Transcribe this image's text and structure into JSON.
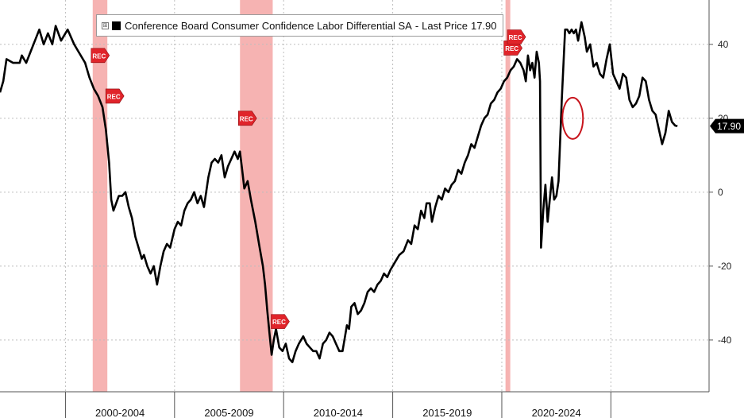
{
  "legend": {
    "series_name": "Conference Board Consumer Confidence Labor Differential SA",
    "separator": "-",
    "price_label": "Last Price",
    "last_price": "17.90",
    "toggle_symbol": "⊞"
  },
  "colors": {
    "line": "#000000",
    "recession_band": "#f4a6a4",
    "recession_badge": "#e0242a",
    "highlight_circle": "#c8141c",
    "grid": "#bdbdbd",
    "price_tag": "#000000"
  },
  "chart_data": {
    "type": "line",
    "title": "Conference Board Consumer Confidence Labor Differential SA",
    "xlabel": "",
    "ylabel": "",
    "xlim": [
      1997.0,
      2029.5
    ],
    "ylim": [
      -54,
      52
    ],
    "y_ticks": [
      40,
      20,
      0,
      -20,
      -40
    ],
    "x_period_labels": [
      {
        "label": "2000-2004",
        "start": 2000,
        "end": 2005
      },
      {
        "label": "2005-2009",
        "start": 2005,
        "end": 2010
      },
      {
        "label": "2010-2014",
        "start": 2010,
        "end": 2015
      },
      {
        "label": "2015-2019",
        "start": 2015,
        "end": 2020
      },
      {
        "label": "2020-2024",
        "start": 2020,
        "end": 2025
      }
    ],
    "x_boundaries": [
      2000,
      2005,
      2010,
      2015,
      2020,
      2025
    ],
    "recessions": [
      {
        "start": 2001.25,
        "end": 2001.92,
        "label": "REC"
      },
      {
        "start": 2008.0,
        "end": 2009.5,
        "label": "REC"
      },
      {
        "start": 2020.17,
        "end": 2020.33,
        "label": "REC"
      }
    ],
    "last_value_tag": "17.90",
    "highlight": {
      "x": 2023.25,
      "y": 20
    },
    "series": [
      {
        "name": "Labor Differential",
        "points": [
          [
            1997.0,
            27
          ],
          [
            1997.15,
            30
          ],
          [
            1997.3,
            36
          ],
          [
            1997.6,
            35
          ],
          [
            1997.9,
            35
          ],
          [
            1998.0,
            37
          ],
          [
            1998.2,
            35
          ],
          [
            1998.4,
            38
          ],
          [
            1998.6,
            41
          ],
          [
            1998.8,
            44
          ],
          [
            1999.0,
            40
          ],
          [
            1999.2,
            43
          ],
          [
            1999.4,
            40
          ],
          [
            1999.55,
            45
          ],
          [
            1999.8,
            41
          ],
          [
            2000.1,
            44
          ],
          [
            2000.4,
            40
          ],
          [
            2000.6,
            38
          ],
          [
            2000.9,
            35
          ],
          [
            2001.1,
            31
          ],
          [
            2001.3,
            28
          ],
          [
            2001.5,
            26
          ],
          [
            2001.7,
            23
          ],
          [
            2001.85,
            17
          ],
          [
            2002.0,
            8
          ],
          [
            2002.1,
            -2
          ],
          [
            2002.2,
            -5
          ],
          [
            2002.45,
            -1
          ],
          [
            2002.6,
            -1
          ],
          [
            2002.75,
            0
          ],
          [
            2002.9,
            -4
          ],
          [
            2003.05,
            -7
          ],
          [
            2003.2,
            -12
          ],
          [
            2003.35,
            -15
          ],
          [
            2003.5,
            -18
          ],
          [
            2003.6,
            -17
          ],
          [
            2003.75,
            -20
          ],
          [
            2003.9,
            -22
          ],
          [
            2004.05,
            -20
          ],
          [
            2004.2,
            -25
          ],
          [
            2004.35,
            -20
          ],
          [
            2004.5,
            -16
          ],
          [
            2004.65,
            -14
          ],
          [
            2004.8,
            -15
          ],
          [
            2005.0,
            -10
          ],
          [
            2005.15,
            -8
          ],
          [
            2005.3,
            -9
          ],
          [
            2005.45,
            -5
          ],
          [
            2005.6,
            -3
          ],
          [
            2005.75,
            -2
          ],
          [
            2005.9,
            0
          ],
          [
            2006.05,
            -3
          ],
          [
            2006.2,
            -1
          ],
          [
            2006.35,
            -4
          ],
          [
            2006.55,
            4
          ],
          [
            2006.7,
            8
          ],
          [
            2006.85,
            9
          ],
          [
            2007.0,
            8
          ],
          [
            2007.15,
            10
          ],
          [
            2007.3,
            4
          ],
          [
            2007.45,
            7
          ],
          [
            2007.6,
            9
          ],
          [
            2007.75,
            11
          ],
          [
            2007.9,
            9
          ],
          [
            2008.0,
            11
          ],
          [
            2008.1,
            6
          ],
          [
            2008.2,
            1
          ],
          [
            2008.35,
            3
          ],
          [
            2008.5,
            -2
          ],
          [
            2008.7,
            -8
          ],
          [
            2008.9,
            -15
          ],
          [
            2009.05,
            -20
          ],
          [
            2009.15,
            -25
          ],
          [
            2009.25,
            -32
          ],
          [
            2009.35,
            -38
          ],
          [
            2009.45,
            -44
          ],
          [
            2009.55,
            -40
          ],
          [
            2009.65,
            -37
          ],
          [
            2009.8,
            -42
          ],
          [
            2009.95,
            -43
          ],
          [
            2010.1,
            -41
          ],
          [
            2010.25,
            -45
          ],
          [
            2010.4,
            -46
          ],
          [
            2010.55,
            -43
          ],
          [
            2010.7,
            -41
          ],
          [
            2010.9,
            -39
          ],
          [
            2011.05,
            -41
          ],
          [
            2011.2,
            -42
          ],
          [
            2011.35,
            -43
          ],
          [
            2011.5,
            -43
          ],
          [
            2011.65,
            -45
          ],
          [
            2011.8,
            -41
          ],
          [
            2011.95,
            -40
          ],
          [
            2012.1,
            -38
          ],
          [
            2012.25,
            -39
          ],
          [
            2012.4,
            -41
          ],
          [
            2012.55,
            -43
          ],
          [
            2012.7,
            -43
          ],
          [
            2012.9,
            -36
          ],
          [
            2013.0,
            -37
          ],
          [
            2013.1,
            -31
          ],
          [
            2013.25,
            -30
          ],
          [
            2013.4,
            -33
          ],
          [
            2013.55,
            -32
          ],
          [
            2013.7,
            -30
          ],
          [
            2013.85,
            -27
          ],
          [
            2014.0,
            -26
          ],
          [
            2014.15,
            -27
          ],
          [
            2014.3,
            -25
          ],
          [
            2014.45,
            -24
          ],
          [
            2014.6,
            -22
          ],
          [
            2014.75,
            -23
          ],
          [
            2014.9,
            -21
          ],
          [
            2015.1,
            -19
          ],
          [
            2015.3,
            -17
          ],
          [
            2015.5,
            -16
          ],
          [
            2015.7,
            -13
          ],
          [
            2015.85,
            -14
          ],
          [
            2016.0,
            -9
          ],
          [
            2016.15,
            -10
          ],
          [
            2016.3,
            -5
          ],
          [
            2016.45,
            -7
          ],
          [
            2016.55,
            -3
          ],
          [
            2016.7,
            -3
          ],
          [
            2016.8,
            -8
          ],
          [
            2016.95,
            -4
          ],
          [
            2017.1,
            -1
          ],
          [
            2017.25,
            -2
          ],
          [
            2017.4,
            1
          ],
          [
            2017.55,
            0
          ],
          [
            2017.7,
            2
          ],
          [
            2017.85,
            3
          ],
          [
            2018.0,
            6
          ],
          [
            2018.15,
            5
          ],
          [
            2018.3,
            8
          ],
          [
            2018.45,
            10
          ],
          [
            2018.6,
            13
          ],
          [
            2018.75,
            12
          ],
          [
            2018.9,
            15
          ],
          [
            2019.05,
            18
          ],
          [
            2019.2,
            20
          ],
          [
            2019.35,
            21
          ],
          [
            2019.5,
            24
          ],
          [
            2019.65,
            25
          ],
          [
            2019.8,
            27
          ],
          [
            2019.95,
            28
          ],
          [
            2020.1,
            30
          ],
          [
            2020.25,
            31
          ],
          [
            2020.4,
            33
          ],
          [
            2020.55,
            34
          ],
          [
            2020.7,
            36
          ],
          [
            2020.85,
            35
          ],
          [
            2021.0,
            33
          ],
          [
            2021.1,
            30
          ],
          [
            2021.2,
            37
          ],
          [
            2021.3,
            33
          ],
          [
            2021.4,
            35
          ],
          [
            2021.5,
            31
          ],
          [
            2021.6,
            38
          ],
          [
            2021.7,
            35
          ],
          [
            2021.75,
            30
          ],
          [
            2021.8,
            -15
          ],
          [
            2021.9,
            -5
          ],
          [
            2022.0,
            2
          ],
          [
            2022.1,
            -8
          ],
          [
            2022.2,
            -2
          ],
          [
            2022.3,
            4
          ],
          [
            2022.4,
            -2
          ],
          [
            2022.5,
            -1
          ],
          [
            2022.6,
            3
          ],
          [
            2022.75,
            25
          ],
          [
            2022.9,
            44
          ],
          [
            2023.0,
            44
          ],
          [
            2023.1,
            43
          ],
          [
            2023.2,
            44
          ],
          [
            2023.3,
            43
          ],
          [
            2023.4,
            44
          ],
          [
            2023.5,
            41
          ],
          [
            2023.65,
            46
          ],
          [
            2023.8,
            42
          ],
          [
            2023.9,
            38
          ],
          [
            2024.05,
            40
          ],
          [
            2024.2,
            34
          ],
          [
            2024.35,
            35
          ],
          [
            2024.5,
            32
          ],
          [
            2024.65,
            31
          ],
          [
            2024.8,
            36
          ],
          [
            2024.95,
            40
          ],
          [
            2025.1,
            32
          ],
          [
            2025.25,
            30
          ],
          [
            2025.4,
            28
          ],
          [
            2025.55,
            32
          ],
          [
            2025.7,
            31
          ],
          [
            2025.85,
            25
          ],
          [
            2026.0,
            23
          ],
          [
            2026.15,
            24
          ],
          [
            2026.3,
            26
          ],
          [
            2026.45,
            31
          ],
          [
            2026.6,
            30
          ],
          [
            2026.75,
            25
          ],
          [
            2026.9,
            22
          ],
          [
            2027.05,
            21
          ],
          [
            2027.2,
            17
          ],
          [
            2027.35,
            13
          ],
          [
            2027.5,
            16
          ],
          [
            2027.65,
            22
          ],
          [
            2027.8,
            19
          ],
          [
            2027.95,
            18
          ],
          [
            2028.05,
            17.9
          ]
        ]
      }
    ]
  }
}
